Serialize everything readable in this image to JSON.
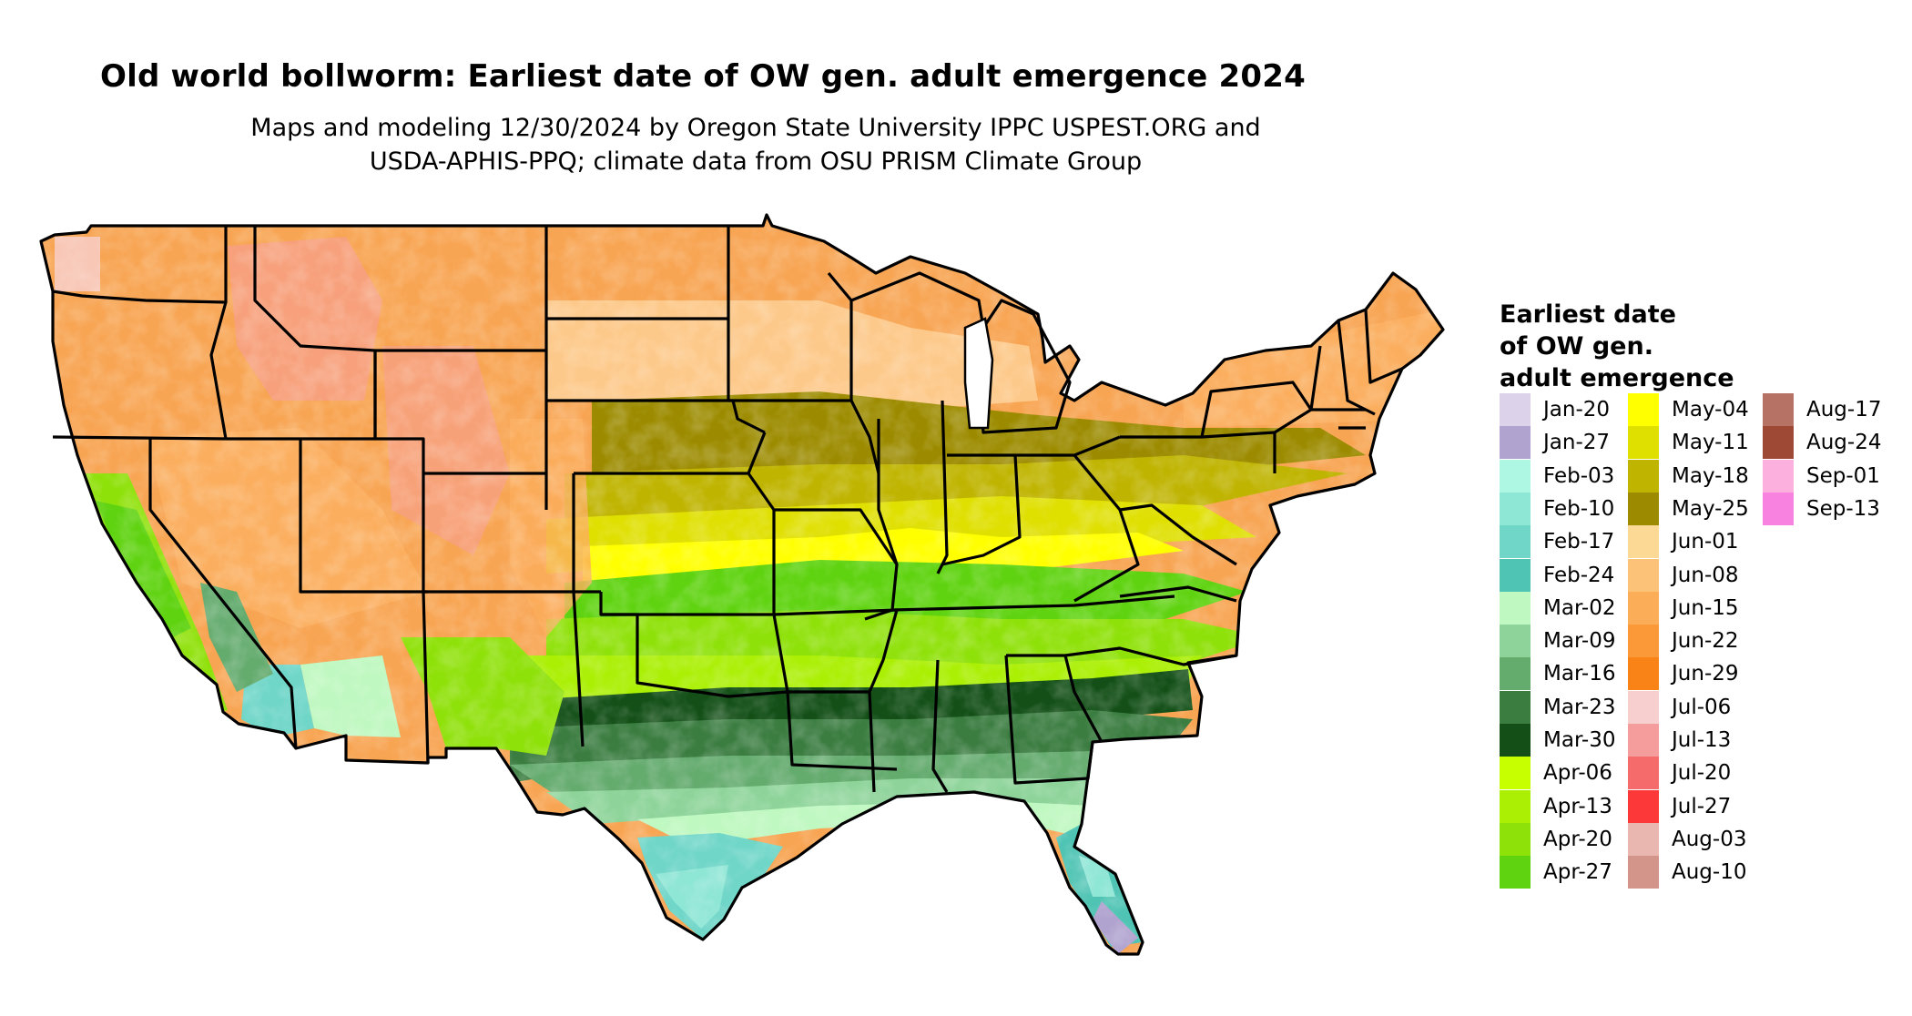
{
  "title": "Old world bollworm: Earliest date of OW gen. adult emergence 2024",
  "subtitle_line1": "Maps and modeling 12/30/2024 by Oregon State University IPPC USPEST.ORG and",
  "subtitle_line2": "USDA-APHIS-PPQ; climate data from OSU PRISM Climate Group",
  "legend": {
    "title_lines": [
      "Earliest date",
      "of OW gen.",
      "adult emergence"
    ],
    "items": [
      {
        "label": "Jan-20",
        "color": "#dcd3ea"
      },
      {
        "label": "Jan-27",
        "color": "#b0a3cf"
      },
      {
        "label": "Feb-03",
        "color": "#aef7e2"
      },
      {
        "label": "Feb-10",
        "color": "#8ee6d5"
      },
      {
        "label": "Feb-17",
        "color": "#6fd6c8"
      },
      {
        "label": "Feb-24",
        "color": "#4fc4b4"
      },
      {
        "label": "Mar-02",
        "color": "#bff8c0"
      },
      {
        "label": "Mar-09",
        "color": "#8ed49a"
      },
      {
        "label": "Mar-16",
        "color": "#64ab6e"
      },
      {
        "label": "Mar-23",
        "color": "#3b7d41"
      },
      {
        "label": "Mar-30",
        "color": "#134f17"
      },
      {
        "label": "Apr-06",
        "color": "#c8ff00"
      },
      {
        "label": "Apr-13",
        "color": "#abef05"
      },
      {
        "label": "Apr-20",
        "color": "#8fe10a"
      },
      {
        "label": "Apr-27",
        "color": "#5fd310"
      },
      {
        "label": "May-04",
        "color": "#ffff00"
      },
      {
        "label": "May-11",
        "color": "#dfdf00"
      },
      {
        "label": "May-18",
        "color": "#bfb400"
      },
      {
        "label": "May-25",
        "color": "#9c8b00"
      },
      {
        "label": "Jun-01",
        "color": "#fdd996"
      },
      {
        "label": "Jun-08",
        "color": "#fcc278"
      },
      {
        "label": "Jun-15",
        "color": "#fbad58"
      },
      {
        "label": "Jun-22",
        "color": "#fb9838"
      },
      {
        "label": "Jun-29",
        "color": "#fa8318"
      },
      {
        "label": "Jul-06",
        "color": "#f7cfcf"
      },
      {
        "label": "Jul-13",
        "color": "#f59d9d"
      },
      {
        "label": "Jul-20",
        "color": "#f56b6b"
      },
      {
        "label": "Jul-27",
        "color": "#fd3838"
      },
      {
        "label": "Aug-03",
        "color": "#e9b7af"
      },
      {
        "label": "Aug-10",
        "color": "#d3958a"
      },
      {
        "label": "Aug-17",
        "color": "#b57265"
      },
      {
        "label": "Aug-24",
        "color": "#9e4836"
      },
      {
        "label": "Sep-01",
        "color": "#fcb0de"
      },
      {
        "label": "Sep-13",
        "color": "#f882e0"
      }
    ]
  }
}
